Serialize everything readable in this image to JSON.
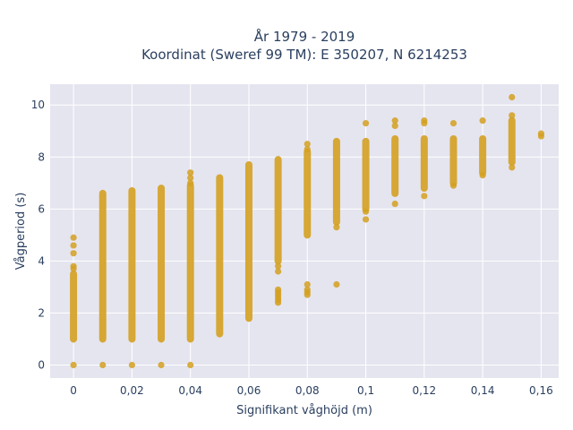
{
  "chart_data": {
    "type": "scatter",
    "title_line1": "År 1979 - 2019",
    "title_line2": "Koordinat (Sweref 99 TM): E 350207, N 6214253",
    "xlabel": "Signifikant våghöjd (m)",
    "ylabel": "Vågperiod (s)",
    "xlim": [
      -0.008,
      0.166
    ],
    "ylim": [
      -0.5,
      10.8
    ],
    "x_ticks": [
      {
        "value": 0,
        "label": "0"
      },
      {
        "value": 0.02,
        "label": "0,02"
      },
      {
        "value": 0.04,
        "label": "0,04"
      },
      {
        "value": 0.06,
        "label": "0,06"
      },
      {
        "value": 0.08,
        "label": "0,08"
      },
      {
        "value": 0.1,
        "label": "0,1"
      },
      {
        "value": 0.12,
        "label": "0,12"
      },
      {
        "value": 0.14,
        "label": "0,14"
      },
      {
        "value": 0.16,
        "label": "0,16"
      }
    ],
    "y_ticks": [
      {
        "value": 0,
        "label": "0"
      },
      {
        "value": 2,
        "label": "2"
      },
      {
        "value": 4,
        "label": "4"
      },
      {
        "value": 6,
        "label": "6"
      },
      {
        "value": 8,
        "label": "8"
      },
      {
        "value": 10,
        "label": "10"
      }
    ],
    "grid": true,
    "marker_color": "#d4a020",
    "plot_bg": "#e5e5f0",
    "series": [
      {
        "points": [
          {
            "x": 0,
            "y": 0
          },
          {
            "x": 0.01,
            "y": 0
          },
          {
            "x": 0.02,
            "y": 0
          },
          {
            "x": 0.03,
            "y": 0
          },
          {
            "x": 0.04,
            "y": 0
          },
          {
            "x": 0,
            "y": 4.9
          },
          {
            "x": 0,
            "y": 4.6
          },
          {
            "x": 0,
            "y": 4.3
          },
          {
            "x": 0,
            "y": 3.8
          },
          {
            "x": 0,
            "y": 3.7
          },
          {
            "x": 0.04,
            "y": 7.4
          },
          {
            "x": 0.04,
            "y": 7.2
          },
          {
            "x": 0.04,
            "y": 7.0
          },
          {
            "x": 0.07,
            "y": 2.9
          },
          {
            "x": 0.07,
            "y": 2.8
          },
          {
            "x": 0.07,
            "y": 2.7
          },
          {
            "x": 0.07,
            "y": 2.6
          },
          {
            "x": 0.07,
            "y": 2.5
          },
          {
            "x": 0.07,
            "y": 2.4
          },
          {
            "x": 0.07,
            "y": 3.8
          },
          {
            "x": 0.07,
            "y": 3.6
          },
          {
            "x": 0.08,
            "y": 3.1
          },
          {
            "x": 0.08,
            "y": 2.9
          },
          {
            "x": 0.08,
            "y": 2.8
          },
          {
            "x": 0.08,
            "y": 2.7
          },
          {
            "x": 0.08,
            "y": 8.5
          },
          {
            "x": 0.08,
            "y": 8.3
          },
          {
            "x": 0.09,
            "y": 3.1
          },
          {
            "x": 0.09,
            "y": 5.3
          },
          {
            "x": 0.1,
            "y": 9.3
          },
          {
            "x": 0.1,
            "y": 5.9
          },
          {
            "x": 0.1,
            "y": 5.6
          },
          {
            "x": 0.11,
            "y": 9.4
          },
          {
            "x": 0.11,
            "y": 9.2
          },
          {
            "x": 0.11,
            "y": 6.2
          },
          {
            "x": 0.12,
            "y": 9.4
          },
          {
            "x": 0.12,
            "y": 9.3
          },
          {
            "x": 0.12,
            "y": 6.5
          },
          {
            "x": 0.13,
            "y": 9.3
          },
          {
            "x": 0.13,
            "y": 6.9
          },
          {
            "x": 0.14,
            "y": 9.4
          },
          {
            "x": 0.14,
            "y": 7.3
          },
          {
            "x": 0.15,
            "y": 10.3
          },
          {
            "x": 0.15,
            "y": 9.6
          },
          {
            "x": 0.15,
            "y": 7.6
          },
          {
            "x": 0.16,
            "y": 8.9
          },
          {
            "x": 0.16,
            "y": 8.8
          }
        ],
        "ranges": [
          {
            "x": 0,
            "y_min": 1.0,
            "y_max": 3.5
          },
          {
            "x": 0.01,
            "y_min": 1.0,
            "y_max": 6.6
          },
          {
            "x": 0.02,
            "y_min": 1.0,
            "y_max": 6.7
          },
          {
            "x": 0.03,
            "y_min": 1.0,
            "y_max": 6.8
          },
          {
            "x": 0.04,
            "y_min": 1.0,
            "y_max": 6.9
          },
          {
            "x": 0.05,
            "y_min": 1.2,
            "y_max": 7.2
          },
          {
            "x": 0.06,
            "y_min": 1.8,
            "y_max": 7.7
          },
          {
            "x": 0.07,
            "y_min": 4.0,
            "y_max": 7.9
          },
          {
            "x": 0.08,
            "y_min": 5.0,
            "y_max": 8.2
          },
          {
            "x": 0.09,
            "y_min": 5.5,
            "y_max": 8.6
          },
          {
            "x": 0.1,
            "y_min": 6.0,
            "y_max": 8.6
          },
          {
            "x": 0.11,
            "y_min": 6.6,
            "y_max": 8.7
          },
          {
            "x": 0.12,
            "y_min": 6.8,
            "y_max": 8.7
          },
          {
            "x": 0.13,
            "y_min": 7.0,
            "y_max": 8.7
          },
          {
            "x": 0.14,
            "y_min": 7.4,
            "y_max": 8.7
          },
          {
            "x": 0.15,
            "y_min": 7.8,
            "y_max": 9.4
          }
        ]
      }
    ]
  }
}
